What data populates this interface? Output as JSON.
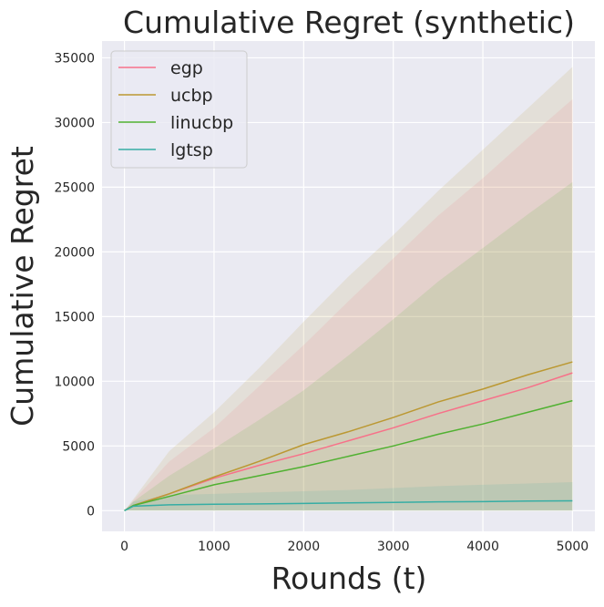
{
  "chart_data": {
    "type": "line",
    "title": "Cumulative Regret (synthetic)",
    "xlabel": "Rounds (t)",
    "ylabel": "Cumulative Regret",
    "xlim": [
      -250,
      5250
    ],
    "ylim": [
      -1600,
      36300
    ],
    "xticks": [
      0,
      1000,
      2000,
      3000,
      4000,
      5000
    ],
    "yticks": [
      0,
      5000,
      10000,
      15000,
      20000,
      25000,
      30000,
      35000
    ],
    "grid": true,
    "legend_position": "top-left",
    "x": [
      0,
      100,
      500,
      1000,
      1500,
      2000,
      2500,
      3000,
      3500,
      4000,
      4500,
      5000
    ],
    "series": [
      {
        "name": "egp",
        "color": "#f77189",
        "values": [
          0,
          400,
          1300,
          2500,
          3500,
          4400,
          5400,
          6400,
          7500,
          8500,
          9500,
          10650
        ],
        "upper": [
          0,
          800,
          3800,
          6400,
          9600,
          12800,
          16200,
          19500,
          22800,
          25700,
          28800,
          31800
        ],
        "lower": [
          0,
          0,
          0,
          0,
          0,
          0,
          0,
          0,
          0,
          0,
          0,
          0
        ]
      },
      {
        "name": "ucbp",
        "color": "#bb9832",
        "values": [
          0,
          400,
          1300,
          2600,
          3800,
          5100,
          6100,
          7200,
          8400,
          9400,
          10500,
          11500
        ],
        "upper": [
          0,
          900,
          4600,
          7600,
          11000,
          14600,
          18100,
          21300,
          24700,
          27900,
          31100,
          34300
        ],
        "lower": [
          0,
          0,
          0,
          0,
          0,
          0,
          0,
          0,
          0,
          0,
          0,
          0
        ]
      },
      {
        "name": "linucbp",
        "color": "#50b131",
        "values": [
          0,
          400,
          1100,
          2000,
          2700,
          3400,
          4200,
          5000,
          5900,
          6700,
          7600,
          8500
        ],
        "upper": [
          0,
          700,
          2700,
          4800,
          7000,
          9300,
          12000,
          14800,
          17700,
          20300,
          22900,
          25400
        ],
        "lower": [
          0,
          0,
          0,
          0,
          0,
          0,
          0,
          0,
          0,
          0,
          0,
          0
        ]
      },
      {
        "name": "lgtsp",
        "color": "#36ada4",
        "values": [
          0,
          350,
          450,
          500,
          520,
          560,
          600,
          640,
          680,
          700,
          740,
          760
        ],
        "upper": [
          0,
          700,
          1200,
          1300,
          1400,
          1500,
          1600,
          1750,
          1900,
          2000,
          2100,
          2200
        ],
        "lower": [
          0,
          0,
          0,
          0,
          0,
          0,
          0,
          0,
          0,
          0,
          0,
          0
        ]
      }
    ]
  },
  "colors": {
    "plot_bg": "#eaeaf2",
    "grid": "#ffffff"
  }
}
